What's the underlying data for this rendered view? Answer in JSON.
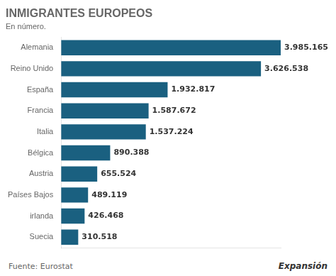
{
  "chart_data": {
    "type": "bar",
    "orientation": "horizontal",
    "title": "INMIGRANTES EUROPEOS",
    "subtitle": "En número.",
    "annotations": [
      "Fuente: Eurostat",
      "Expansión"
    ],
    "categories": [
      "Alemania",
      "Reino Unido",
      "España",
      "Francia",
      "Italia",
      "Bélgica",
      "Austria",
      "Países Bajos",
      "irlanda",
      "Suecia"
    ],
    "values": [
      3985165,
      3626538,
      1932817,
      1587672,
      1537224,
      890388,
      655524,
      489119,
      426468,
      310518
    ],
    "value_labels": [
      "3.985.165",
      "3.626.538",
      "1.932.817",
      "1.587.672",
      "1.537.224",
      "890.388",
      "655.524",
      "489.119",
      "426.468",
      "310.518"
    ],
    "data_labels": true,
    "color": "#1a6080",
    "xlim": [
      0,
      3985165
    ],
    "grid": false,
    "tick_labels": "y"
  }
}
